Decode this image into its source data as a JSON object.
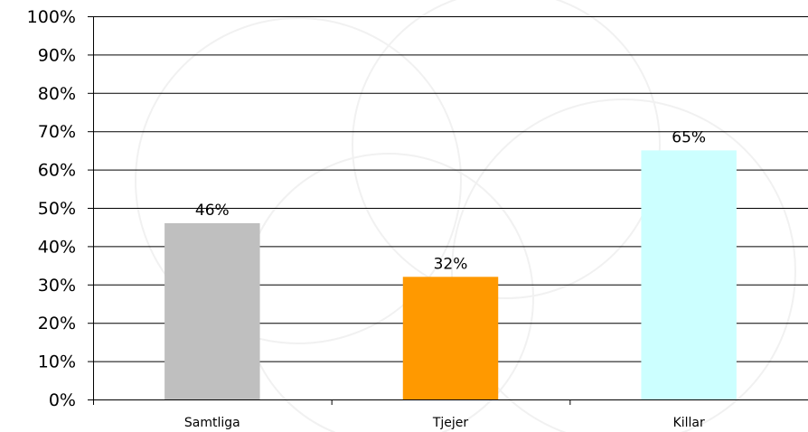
{
  "chart_data": {
    "type": "bar",
    "title": "",
    "xlabel": "",
    "ylabel": "",
    "categories": [
      "Samtliga",
      "Tjejer",
      "Killar"
    ],
    "values": [
      46,
      32,
      65
    ],
    "data_labels": [
      "46%",
      "32%",
      "65%"
    ],
    "bar_colors": [
      "#bfbfbf",
      "#ff9900",
      "#ccffff"
    ],
    "ylim": [
      0,
      100
    ],
    "y_ticks": [
      0,
      10,
      20,
      30,
      40,
      50,
      60,
      70,
      80,
      90,
      100
    ],
    "y_tick_labels": [
      "0%",
      "10%",
      "20%",
      "30%",
      "40%",
      "50%",
      "60%",
      "70%",
      "80%",
      "90%",
      "100%"
    ],
    "grid": true,
    "legend": "none"
  }
}
